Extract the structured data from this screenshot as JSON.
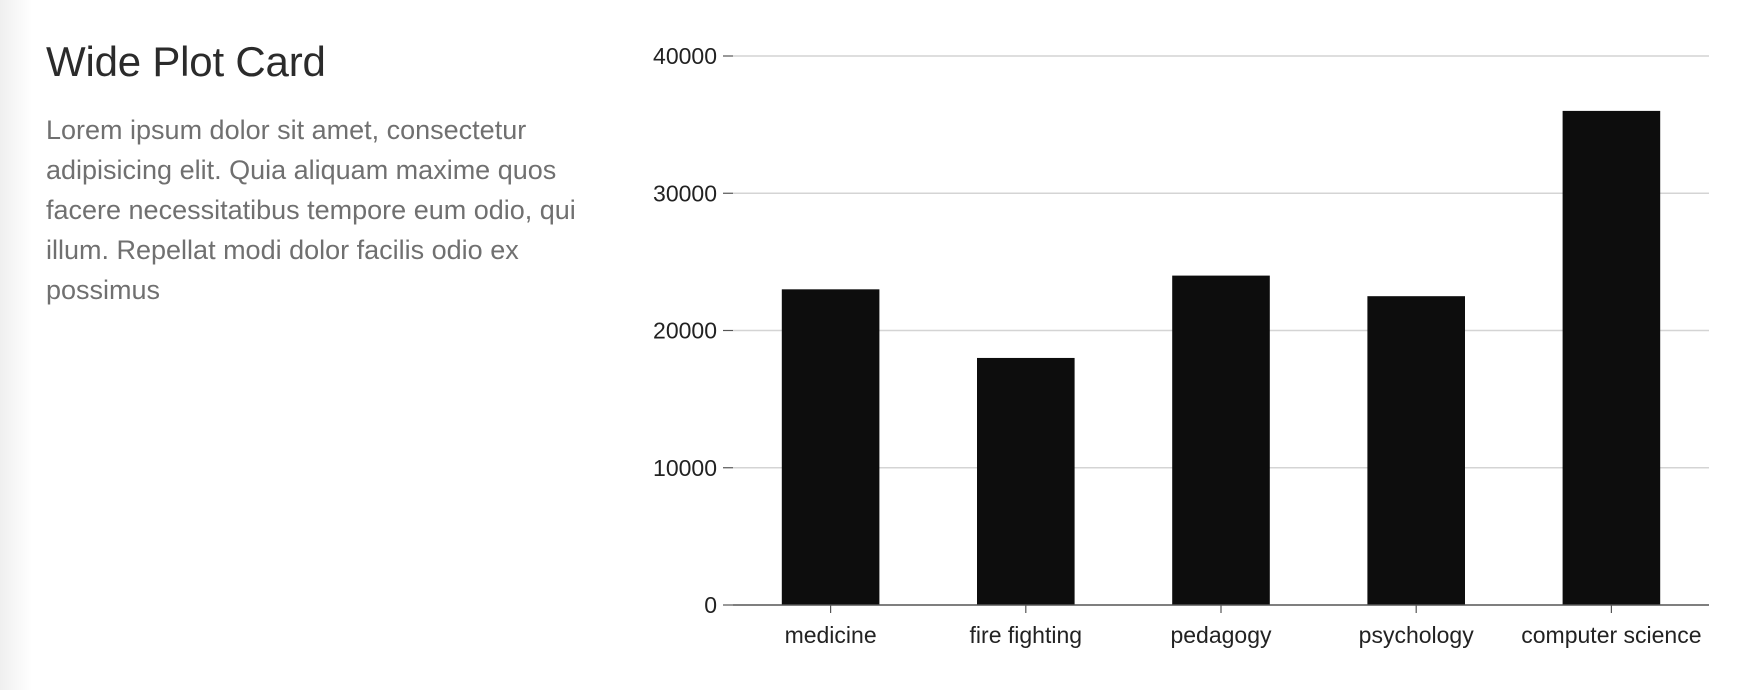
{
  "card": {
    "title": "Wide Plot Card",
    "description": "Lorem ipsum dolor sit amet, consectetur adipisicing elit. Quia aliquam maxime quos facere necessitatibus tempore eum odio, qui illum. Repellat modi dolor facilis odio ex possimus"
  },
  "colors": {
    "bar": "#0d0d0d",
    "grid": "#d4d4d4",
    "axis": "#555555",
    "title": "#2b2b2b",
    "text": "#707070"
  },
  "chart_data": {
    "type": "bar",
    "title": "",
    "xlabel": "",
    "ylabel": "",
    "categories": [
      "medicine",
      "fire fighting",
      "pedagogy",
      "psychology",
      "computer science"
    ],
    "values": [
      23000,
      18000,
      24000,
      22500,
      36000
    ],
    "ylim": [
      0,
      40000
    ],
    "yticks": [
      0,
      10000,
      20000,
      30000,
      40000
    ],
    "grid": true,
    "legend": "none"
  }
}
